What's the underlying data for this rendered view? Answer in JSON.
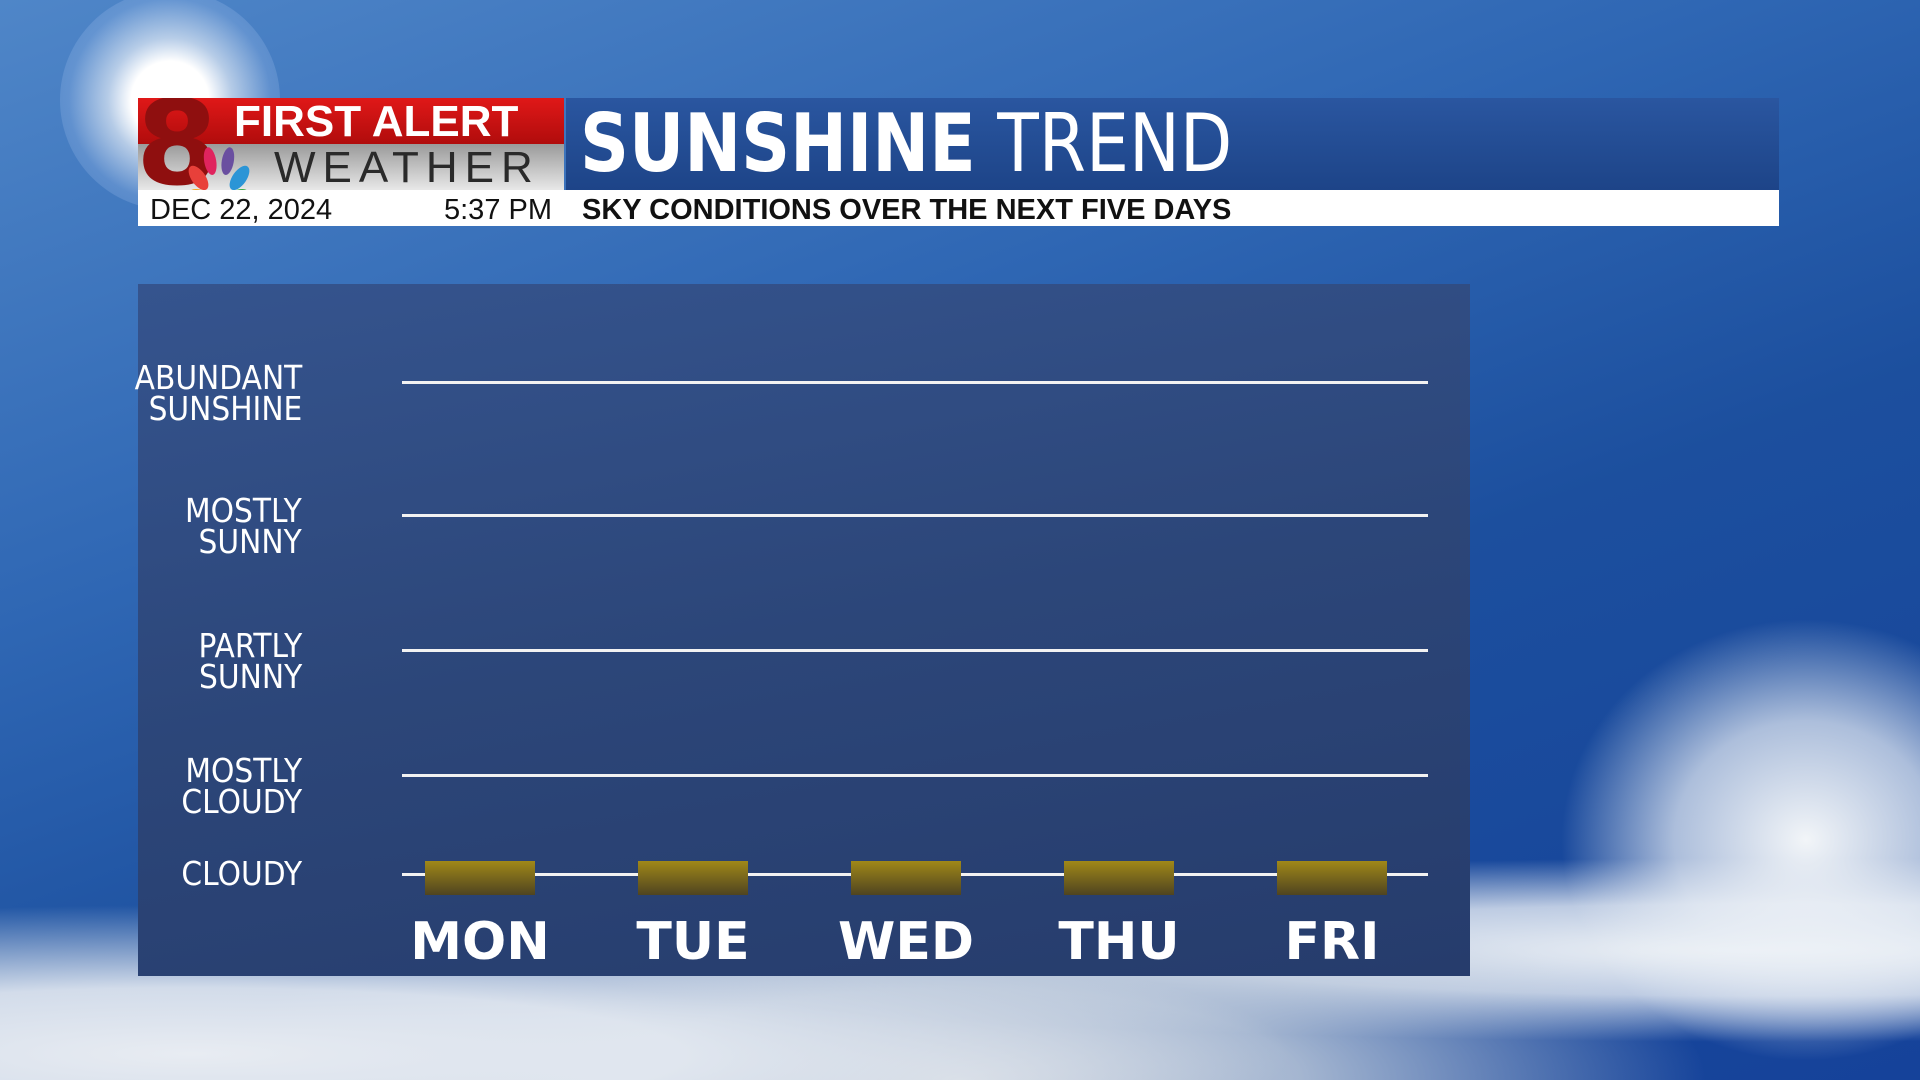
{
  "header": {
    "logo_number": "8",
    "logo_line1": "FIRST ALERT",
    "logo_line2": "WEATHER",
    "title_bold": "SUNSHINE",
    "title_light": "TREND",
    "date": "DEC 22, 2024",
    "time": "5:37 PM",
    "subtitle": "SKY CONDITIONS OVER THE NEXT FIVE DAYS"
  },
  "chart_data": {
    "type": "bar",
    "title": "SUNSHINE TREND",
    "subtitle": "SKY CONDITIONS OVER THE NEXT FIVE DAYS",
    "categories": [
      "MON",
      "TUE",
      "WED",
      "THU",
      "FRI"
    ],
    "y_levels": [
      "CLOUDY",
      "MOSTLY CLOUDY",
      "PARTLY SUNNY",
      "MOSTLY SUNNY",
      "ABUNDANT SUNSHINE"
    ],
    "y_label_lines": [
      [
        "CLOUDY"
      ],
      [
        "MOSTLY",
        "CLOUDY"
      ],
      [
        "PARTLY",
        "SUNNY"
      ],
      [
        "MOSTLY",
        "SUNNY"
      ],
      [
        "ABUNDANT",
        "SUNSHINE"
      ]
    ],
    "values": [
      "CLOUDY",
      "CLOUDY",
      "CLOUDY",
      "CLOUDY",
      "CLOUDY"
    ],
    "bar_color": "#a08818",
    "grid": true
  }
}
